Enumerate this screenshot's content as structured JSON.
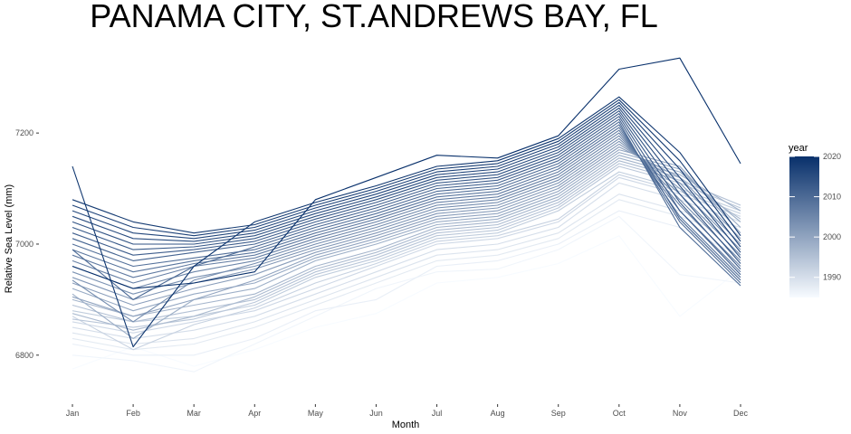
{
  "chart_data": {
    "type": "line",
    "title": "PANAMA CITY, ST.ANDREWS BAY, FL",
    "xlabel": "Month",
    "ylabel": "Relative Sea Level (mm)",
    "categories": [
      "Jan",
      "Feb",
      "Mar",
      "Apr",
      "May",
      "Jun",
      "Jul",
      "Aug",
      "Sep",
      "Oct",
      "Nov",
      "Dec"
    ],
    "yticks": [
      6800,
      7000,
      7200
    ],
    "ylim": [
      6715,
      7350
    ],
    "grid": false,
    "legend": {
      "title": "year",
      "position": "right",
      "type": "colorbar",
      "range": [
        1985,
        2020
      ],
      "ticks": [
        1990,
        2000,
        2010,
        2020
      ],
      "color_low": "#f7fbff",
      "color_high": "#08306b"
    },
    "series": [
      {
        "year": 1985,
        "values": [
          6775,
          6815,
          6780,
          6810,
          6850,
          6875,
          6930,
          6940,
          6965,
          7015,
          6870,
          6955
        ]
      },
      {
        "year": 1986,
        "values": [
          6800,
          6790,
          6770,
          6820,
          6870,
          6920,
          6950,
          6955,
          6990,
          7050,
          6945,
          6930
        ]
      },
      {
        "year": 1987,
        "values": [
          6820,
          6800,
          6800,
          6830,
          6880,
          6900,
          6960,
          6970,
          7000,
          7060,
          7030,
          6980
        ]
      },
      {
        "year": 1988,
        "values": [
          6830,
          6810,
          6820,
          6850,
          6890,
          6930,
          6970,
          6980,
          7010,
          7080,
          7050,
          7010
        ]
      },
      {
        "year": 1989,
        "values": [
          6840,
          6820,
          6830,
          6860,
          6900,
          6940,
          6980,
          6990,
          7020,
          7090,
          7060,
          7030
        ]
      },
      {
        "year": 1990,
        "values": [
          6850,
          6830,
          6845,
          6870,
          6910,
          6950,
          6990,
          7000,
          7030,
          7110,
          7080,
          7040
        ]
      },
      {
        "year": 1991,
        "values": [
          6860,
          6840,
          6860,
          6880,
          6920,
          6960,
          7000,
          7010,
          7040,
          7120,
          7090,
          7050
        ]
      },
      {
        "year": 1992,
        "values": [
          6870,
          6810,
          6855,
          6885,
          6930,
          6965,
          7005,
          7015,
          7045,
          7125,
          7095,
          7055
        ]
      },
      {
        "year": 1993,
        "values": [
          6880,
          6860,
          6870,
          6890,
          6940,
          6970,
          7010,
          7020,
          7060,
          7130,
          7100,
          7060
        ]
      },
      {
        "year": 1994,
        "values": [
          6865,
          6850,
          6865,
          6895,
          6945,
          6975,
          7015,
          7025,
          7065,
          7140,
          7110,
          7065
        ]
      },
      {
        "year": 1995,
        "values": [
          6890,
          6860,
          6880,
          6900,
          6950,
          6980,
          7020,
          7030,
          7070,
          7145,
          7115,
          7070
        ]
      },
      {
        "year": 1996,
        "values": [
          6875,
          6845,
          6870,
          6905,
          6955,
          6985,
          7025,
          7035,
          7075,
          7150,
          7120,
          7045
        ]
      },
      {
        "year": 1997,
        "values": [
          6900,
          6870,
          6890,
          6910,
          6960,
          6990,
          7030,
          7040,
          7080,
          7155,
          7125,
          7060
        ]
      },
      {
        "year": 1998,
        "values": [
          6910,
          6830,
          6900,
          6920,
          6970,
          7000,
          7035,
          7045,
          7085,
          7160,
          7130,
          7040
        ]
      },
      {
        "year": 1999,
        "values": [
          6920,
          6880,
          6910,
          6930,
          6975,
          7005,
          7040,
          7050,
          7090,
          7165,
          7135,
          7030
        ]
      },
      {
        "year": 2000,
        "values": [
          6905,
          6870,
          6900,
          6935,
          6980,
          7010,
          7045,
          7055,
          7095,
          7170,
          7140,
          7020
        ]
      },
      {
        "year": 2001,
        "values": [
          6930,
          6890,
          6920,
          6945,
          6985,
          7015,
          7050,
          7060,
          7100,
          7175,
          7120,
          7010
        ]
      },
      {
        "year": 2002,
        "values": [
          6940,
          6900,
          6930,
          6955,
          6990,
          7020,
          7055,
          7065,
          7105,
          7180,
          7110,
          7000
        ]
      },
      {
        "year": 2003,
        "values": [
          6950,
          6910,
          6940,
          6960,
          6995,
          7025,
          7060,
          7070,
          7110,
          7185,
          7100,
          6990
        ]
      },
      {
        "year": 2004,
        "values": [
          6935,
          6860,
          6935,
          6965,
          7000,
          7030,
          7065,
          7075,
          7115,
          7190,
          7090,
          6980
        ]
      },
      {
        "year": 2005,
        "values": [
          6960,
          6920,
          6950,
          6970,
          7005,
          7035,
          7070,
          7080,
          7120,
          7195,
          7080,
          6970
        ]
      },
      {
        "year": 2006,
        "values": [
          6970,
          6930,
          6960,
          6975,
          7010,
          7040,
          7075,
          7085,
          7125,
          7200,
          7070,
          6960
        ]
      },
      {
        "year": 2007,
        "values": [
          6980,
          6940,
          6965,
          6980,
          7015,
          7045,
          7080,
          7090,
          7130,
          7205,
          7060,
          6950
        ]
      },
      {
        "year": 2008,
        "values": [
          6990,
          6950,
          6970,
          6985,
          7020,
          7050,
          7085,
          7095,
          7135,
          7210,
          7050,
          6940
        ]
      },
      {
        "year": 2009,
        "values": [
          7000,
          6960,
          6975,
          6990,
          7025,
          7055,
          7090,
          7100,
          7140,
          7215,
          7040,
          6930
        ]
      },
      {
        "year": 2010,
        "values": [
          6990,
          6900,
          6960,
          6995,
          7030,
          7060,
          7095,
          7105,
          7145,
          7220,
          7030,
          6925
        ]
      },
      {
        "year": 2011,
        "values": [
          7010,
          6970,
          6985,
          7000,
          7035,
          7065,
          7100,
          7110,
          7150,
          7225,
          7045,
          6935
        ]
      },
      {
        "year": 2012,
        "values": [
          7020,
          6980,
          6990,
          7005,
          7040,
          7070,
          7105,
          7115,
          7155,
          7230,
          7060,
          6945
        ]
      },
      {
        "year": 2013,
        "values": [
          7030,
          6990,
          6995,
          7010,
          7045,
          7075,
          7110,
          7120,
          7160,
          7235,
          7075,
          6955
        ]
      },
      {
        "year": 2014,
        "values": [
          7040,
          7000,
          7000,
          7015,
          7050,
          7080,
          7115,
          7125,
          7165,
          7240,
          7090,
          6965
        ]
      },
      {
        "year": 2015,
        "values": [
          7050,
          7010,
          7005,
          7020,
          7055,
          7085,
          7120,
          7130,
          7170,
          7245,
          7105,
          6975
        ]
      },
      {
        "year": 2016,
        "values": [
          7060,
          7020,
          7010,
          7025,
          7060,
          7090,
          7125,
          7135,
          7175,
          7250,
          7120,
          6985
        ]
      },
      {
        "year": 2017,
        "values": [
          7070,
          7030,
          7015,
          7030,
          7065,
          7095,
          7130,
          7140,
          7180,
          7255,
          7135,
          6995
        ]
      },
      {
        "year": 2018,
        "values": [
          7080,
          7040,
          7020,
          7035,
          7070,
          7100,
          7135,
          7145,
          7185,
          7260,
          7150,
          7005
        ]
      },
      {
        "year": 2019,
        "values": [
          7140,
          6815,
          6960,
          7040,
          7075,
          7105,
          7140,
          7150,
          7190,
          7265,
          7165,
          7015
        ]
      },
      {
        "year": 2020,
        "values": [
          6960,
          6920,
          6930,
          6950,
          7080,
          7120,
          7160,
          7155,
          7195,
          7315,
          7335,
          7145
        ]
      }
    ]
  }
}
